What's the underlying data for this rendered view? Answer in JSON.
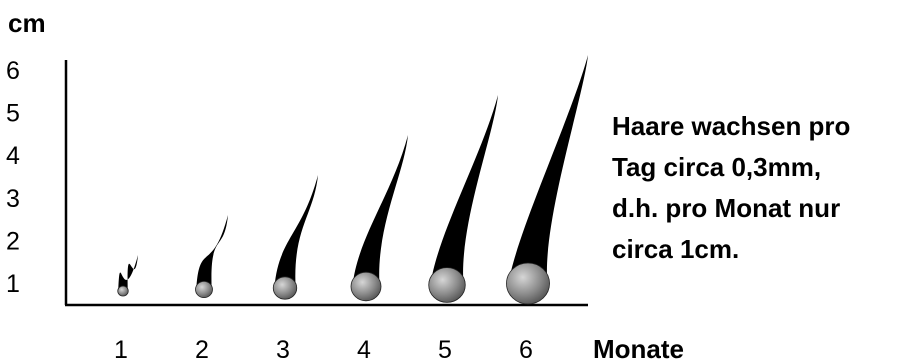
{
  "chart_data": {
    "type": "bar",
    "title": "",
    "ylabel": "cm",
    "xlabel": "Monate",
    "categories": [
      "1",
      "2",
      "3",
      "4",
      "5",
      "6"
    ],
    "values": [
      1,
      2,
      3,
      4,
      5,
      6
    ],
    "yticks": [
      "1",
      "2",
      "3",
      "4",
      "5",
      "6"
    ],
    "ylim": [
      0,
      6
    ],
    "grid": false,
    "mark_style": "hair-shaped bars (black strand with grey bulb root)",
    "annotation_lines": [
      "Haare wachsen pro",
      "Tag circa 0,3mm,",
      "d.h. pro Monat nur",
      "circa 1cm."
    ],
    "colors": {
      "strand": "#000000",
      "bulb": "#8a8a8a",
      "axis": "#000000"
    }
  }
}
